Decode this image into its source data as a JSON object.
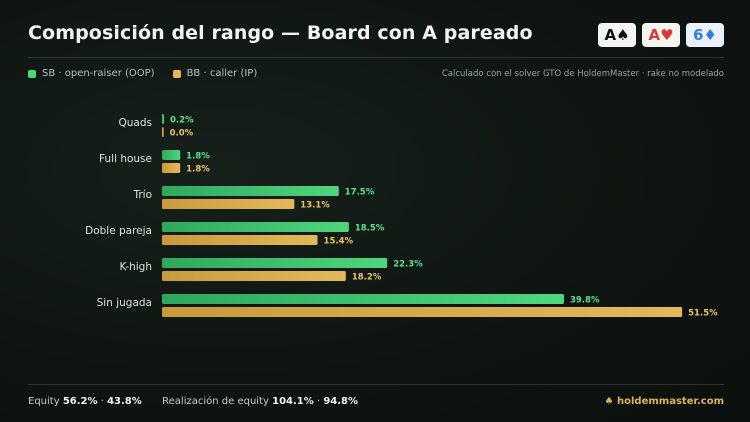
{
  "header": {
    "title": "Composición del rango — Board con A pareado",
    "cards": [
      {
        "rank": "A",
        "suit": "♠",
        "color": "#111111"
      },
      {
        "rank": "A",
        "suit": "♥",
        "color": "#d83a3a"
      },
      {
        "rank": "6",
        "suit": "♦",
        "color": "#2f7fe0"
      }
    ]
  },
  "legend": {
    "sb": "SB · open-raiser (OOP)",
    "bb": "BB · caller (IP)",
    "note": "Calculado con el solver GTO de HoldemMaster · rake no modelado"
  },
  "colors": {
    "sb": "#4fd67e",
    "bb": "#e2b95a",
    "sb_label": "#5fe08c",
    "bb_label": "#e8c46a"
  },
  "chart_data": {
    "type": "bar",
    "orientation": "horizontal",
    "categories": [
      "Quads",
      "Full house",
      "Trío",
      "Doble pareja",
      "K-high",
      "Sin jugada"
    ],
    "series": [
      {
        "name": "SB · open-raiser (OOP)",
        "values": [
          0.2,
          1.8,
          17.5,
          18.5,
          22.3,
          39.8
        ]
      },
      {
        "name": "BB · caller (IP)",
        "values": [
          0.0,
          1.8,
          13.1,
          15.4,
          18.2,
          51.5
        ]
      }
    ],
    "value_suffix": "%",
    "xlim": [
      0,
      55
    ],
    "grid": false
  },
  "footer": {
    "equity_label": "Equity",
    "equity_sb": "56.2%",
    "equity_sep": "·",
    "equity_bb": "43.8%",
    "realization_label": "Realización de equity",
    "realization_sb": "104.1%",
    "realization_sep": "·",
    "realization_bb": "94.8%",
    "brand_icon": "♠",
    "brand": "holdemmaster.com"
  }
}
